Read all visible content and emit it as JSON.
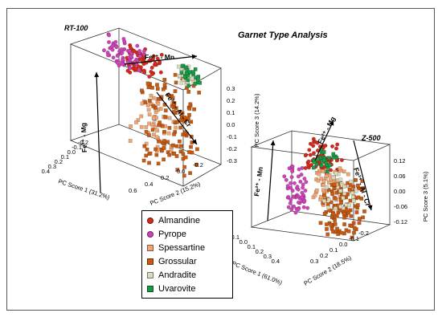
{
  "main_title": "Garnet Type Analysis",
  "colors": {
    "almandine": "#d42a1c",
    "pyrope": "#cc44b8",
    "spessartine": "#f0a575",
    "grossular": "#c65a12",
    "andradite": "#d8dcbc",
    "uvarovite": "#1a9a46"
  },
  "legend": [
    {
      "label": "Almandine",
      "key": "almandine",
      "shape": "circle"
    },
    {
      "label": "Pyrope",
      "key": "pyrope",
      "shape": "circle"
    },
    {
      "label": "Spessartine",
      "key": "spessartine",
      "shape": "square"
    },
    {
      "label": "Grossular",
      "key": "grossular",
      "shape": "square"
    },
    {
      "label": "Andradite",
      "key": "andradite",
      "shape": "square"
    },
    {
      "label": "Uvarovite",
      "key": "uvarovite",
      "shape": "square"
    }
  ],
  "chart_data": [
    {
      "type": "scatter",
      "title": "RT-100",
      "xlabel": "PC Score 1 (31.2%)",
      "ylabel": "PC Score 2 (15.2%)",
      "zlabel": "PC Score 3 (14.2%)",
      "x_ticks": [
        "-0.2",
        "-0.1",
        "0.0",
        "0.1",
        "0.2",
        "0.3",
        "0.4"
      ],
      "y_ticks": [
        "0.6",
        "0.4",
        "0.2",
        "0.0",
        "-0.2"
      ],
      "z_ticks": [
        "0.3",
        "0.2",
        "0.1",
        "0.0",
        "-0.1",
        "-0.2",
        "-0.3"
      ],
      "xlim": [
        -0.2,
        0.4
      ],
      "ylim": [
        -0.2,
        0.6
      ],
      "zlim": [
        -0.3,
        0.3
      ],
      "annotations": [
        "Fe²⁺ - Mg",
        "Fe²⁺ - Mn",
        "Fe³⁺ - Al - Cr"
      ],
      "series_keys": [
        "almandine",
        "pyrope",
        "spessartine",
        "grossular",
        "andradite",
        "uvarovite"
      ],
      "clusters": {
        "almandine": {
          "x": [
            -0.05,
            0.1
          ],
          "y": [
            0.0,
            0.25
          ],
          "z": [
            0.15,
            0.3
          ]
        },
        "pyrope": {
          "x": [
            -0.1,
            0.05
          ],
          "y": [
            -0.2,
            0.1
          ],
          "z": [
            0.15,
            0.3
          ]
        },
        "spessartine": {
          "x": [
            0.1,
            0.3
          ],
          "y": [
            0.2,
            0.5
          ],
          "z": [
            -0.2,
            0.1
          ]
        },
        "grossular": {
          "x": [
            0.0,
            0.35
          ],
          "y": [
            0.3,
            0.6
          ],
          "z": [
            -0.3,
            0.25
          ]
        },
        "andradite": {
          "x": [
            -0.05,
            0.05
          ],
          "y": [
            0.4,
            0.5
          ],
          "z": [
            0.2,
            0.3
          ]
        },
        "uvarovite": {
          "x": [
            -0.05,
            0.05
          ],
          "y": [
            0.4,
            0.55
          ],
          "z": [
            0.2,
            0.3
          ]
        }
      }
    },
    {
      "type": "scatter",
      "title": "Z-500",
      "xlabel": "PC Score 1 (61.0%)",
      "ylabel": "PC Score 2 (18.5%)",
      "zlabel": "PC Score 3 (5.1%)",
      "x_ticks": [
        "-0.1",
        "0.0",
        "0.1",
        "0.2",
        "0.3",
        "0.4"
      ],
      "y_ticks": [
        "0.3",
        "0.2",
        "0.1",
        "0.0",
        "-0.1",
        "-0.2"
      ],
      "z_ticks": [
        "0.12",
        "0.06",
        "0.00",
        "-0.06",
        "-0.12"
      ],
      "xlim": [
        -0.1,
        0.4
      ],
      "ylim": [
        -0.2,
        0.3
      ],
      "zlim": [
        -0.12,
        0.12
      ],
      "annotations": [
        "Fe²⁺ - Mn",
        "Fe²⁺ - Mg",
        "Fe³⁺ - Al - Cr"
      ],
      "series_keys": [
        "almandine",
        "pyrope",
        "spessartine",
        "grossular",
        "andradite",
        "uvarovite"
      ],
      "clusters": {
        "almandine": {
          "x": [
            0.0,
            0.15
          ],
          "y": [
            -0.05,
            0.1
          ],
          "z": [
            0.04,
            0.12
          ]
        },
        "pyrope": {
          "x": [
            -0.1,
            0.0
          ],
          "y": [
            -0.2,
            -0.1
          ],
          "z": [
            -0.12,
            0.02
          ]
        },
        "spessartine": {
          "x": [
            0.1,
            0.3
          ],
          "y": [
            0.05,
            0.2
          ],
          "z": [
            -0.06,
            0.06
          ]
        },
        "grossular": {
          "x": [
            0.2,
            0.4
          ],
          "y": [
            0.15,
            0.3
          ],
          "z": [
            -0.12,
            0.04
          ]
        },
        "andradite": {
          "x": [
            0.15,
            0.3
          ],
          "y": [
            0.1,
            0.25
          ],
          "z": [
            -0.06,
            0.06
          ]
        },
        "uvarovite": {
          "x": [
            0.05,
            0.15
          ],
          "y": [
            0.0,
            0.1
          ],
          "z": [
            0.04,
            0.1
          ]
        }
      }
    }
  ]
}
